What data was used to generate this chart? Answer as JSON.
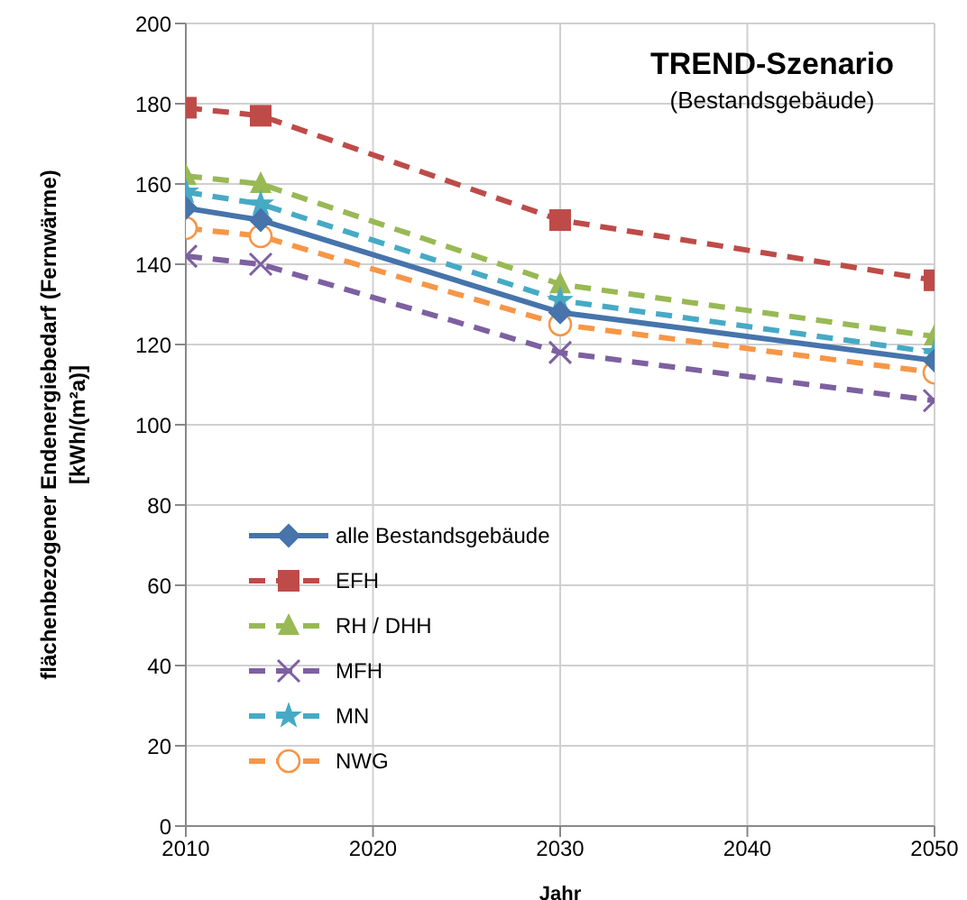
{
  "chart_data": {
    "type": "line",
    "title": "TREND-Szenario",
    "subtitle": "(Bestandsgebäude)",
    "xlabel": "Jahr",
    "ylabel": "flächenbezogener Endenergiebedarf (Fernwärme)\n[kWh/(m²a)]",
    "x": [
      2010,
      2014,
      2030,
      2050
    ],
    "series": [
      {
        "name": "alle Bestandsgebäude",
        "color": "#4674ab",
        "marker": "diamond",
        "line_style": "solid",
        "values": [
          154,
          151,
          128,
          116
        ]
      },
      {
        "name": "EFH",
        "color": "#be4b48",
        "marker": "square",
        "line_style": "dashed",
        "values": [
          179,
          177,
          151,
          136
        ]
      },
      {
        "name": "RH / DHH",
        "color": "#98b954",
        "marker": "triangle",
        "line_style": "dashed",
        "values": [
          162,
          160,
          135,
          122
        ]
      },
      {
        "name": "MFH",
        "color": "#7d60a0",
        "marker": "cross",
        "line_style": "dashed",
        "values": [
          142,
          140,
          118,
          106
        ]
      },
      {
        "name": "MN",
        "color": "#46aac5",
        "marker": "star",
        "line_style": "dashed",
        "values": [
          158,
          155,
          131,
          118
        ]
      },
      {
        "name": "NWG",
        "color": "#f79646",
        "marker": "circle",
        "line_style": "dashed",
        "values": [
          149,
          147,
          125,
          113
        ]
      }
    ],
    "xlim": [
      2010,
      2050
    ],
    "xticks": [
      2010,
      2020,
      2030,
      2040,
      2050
    ],
    "ylim": [
      0,
      200
    ],
    "yticks": [
      0,
      20,
      40,
      60,
      80,
      100,
      120,
      140,
      160,
      180,
      200
    ],
    "grid": true,
    "legend": "bottom left"
  }
}
